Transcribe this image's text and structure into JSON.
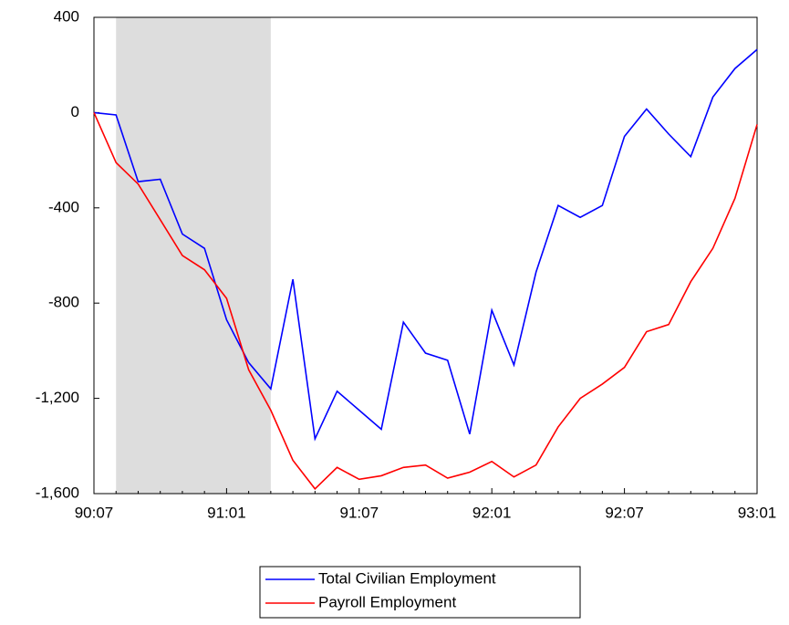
{
  "chart_data": {
    "type": "line",
    "categories": [
      "90:07",
      null,
      null,
      null,
      null,
      null,
      "91:01",
      null,
      null,
      null,
      null,
      null,
      "91:07",
      null,
      null,
      null,
      null,
      null,
      "92:01",
      null,
      null,
      null,
      null,
      null,
      "92:07",
      null,
      null,
      null,
      null,
      null,
      "93:01"
    ],
    "series": [
      {
        "name": "Total Civilian Employment",
        "color": "#0000ff",
        "values": [
          0,
          -10,
          -290,
          -280,
          -510,
          -570,
          -870,
          -1050,
          -1160,
          -700,
          -1370,
          -1170,
          -1250,
          -1330,
          -880,
          -1010,
          -1040,
          -1350,
          -830,
          -1060,
          -670,
          -390,
          -440,
          -390,
          -100,
          15,
          -90,
          -185,
          65,
          185,
          265
        ]
      },
      {
        "name": "Payroll Employment",
        "color": "#ff0000",
        "values": [
          0,
          -210,
          -300,
          -450,
          -600,
          -660,
          -780,
          -1080,
          -1250,
          -1460,
          -1580,
          -1490,
          -1540,
          -1525,
          -1490,
          -1480,
          -1535,
          -1510,
          -1465,
          -1530,
          -1480,
          -1320,
          -1200,
          -1140,
          -1070,
          -920,
          -890,
          -710,
          -570,
          -360,
          -50
        ]
      }
    ],
    "ylim": [
      -1600,
      400
    ],
    "yticks": [
      400,
      0,
      -400,
      -800,
      {
        "value": -1200,
        "label": "-1,200"
      },
      {
        "value": -1600,
        "label": "-1,600"
      }
    ],
    "shaded": {
      "start": 1,
      "end": 8,
      "color": "#dddddd"
    },
    "grid": false,
    "legend": "bottom"
  }
}
